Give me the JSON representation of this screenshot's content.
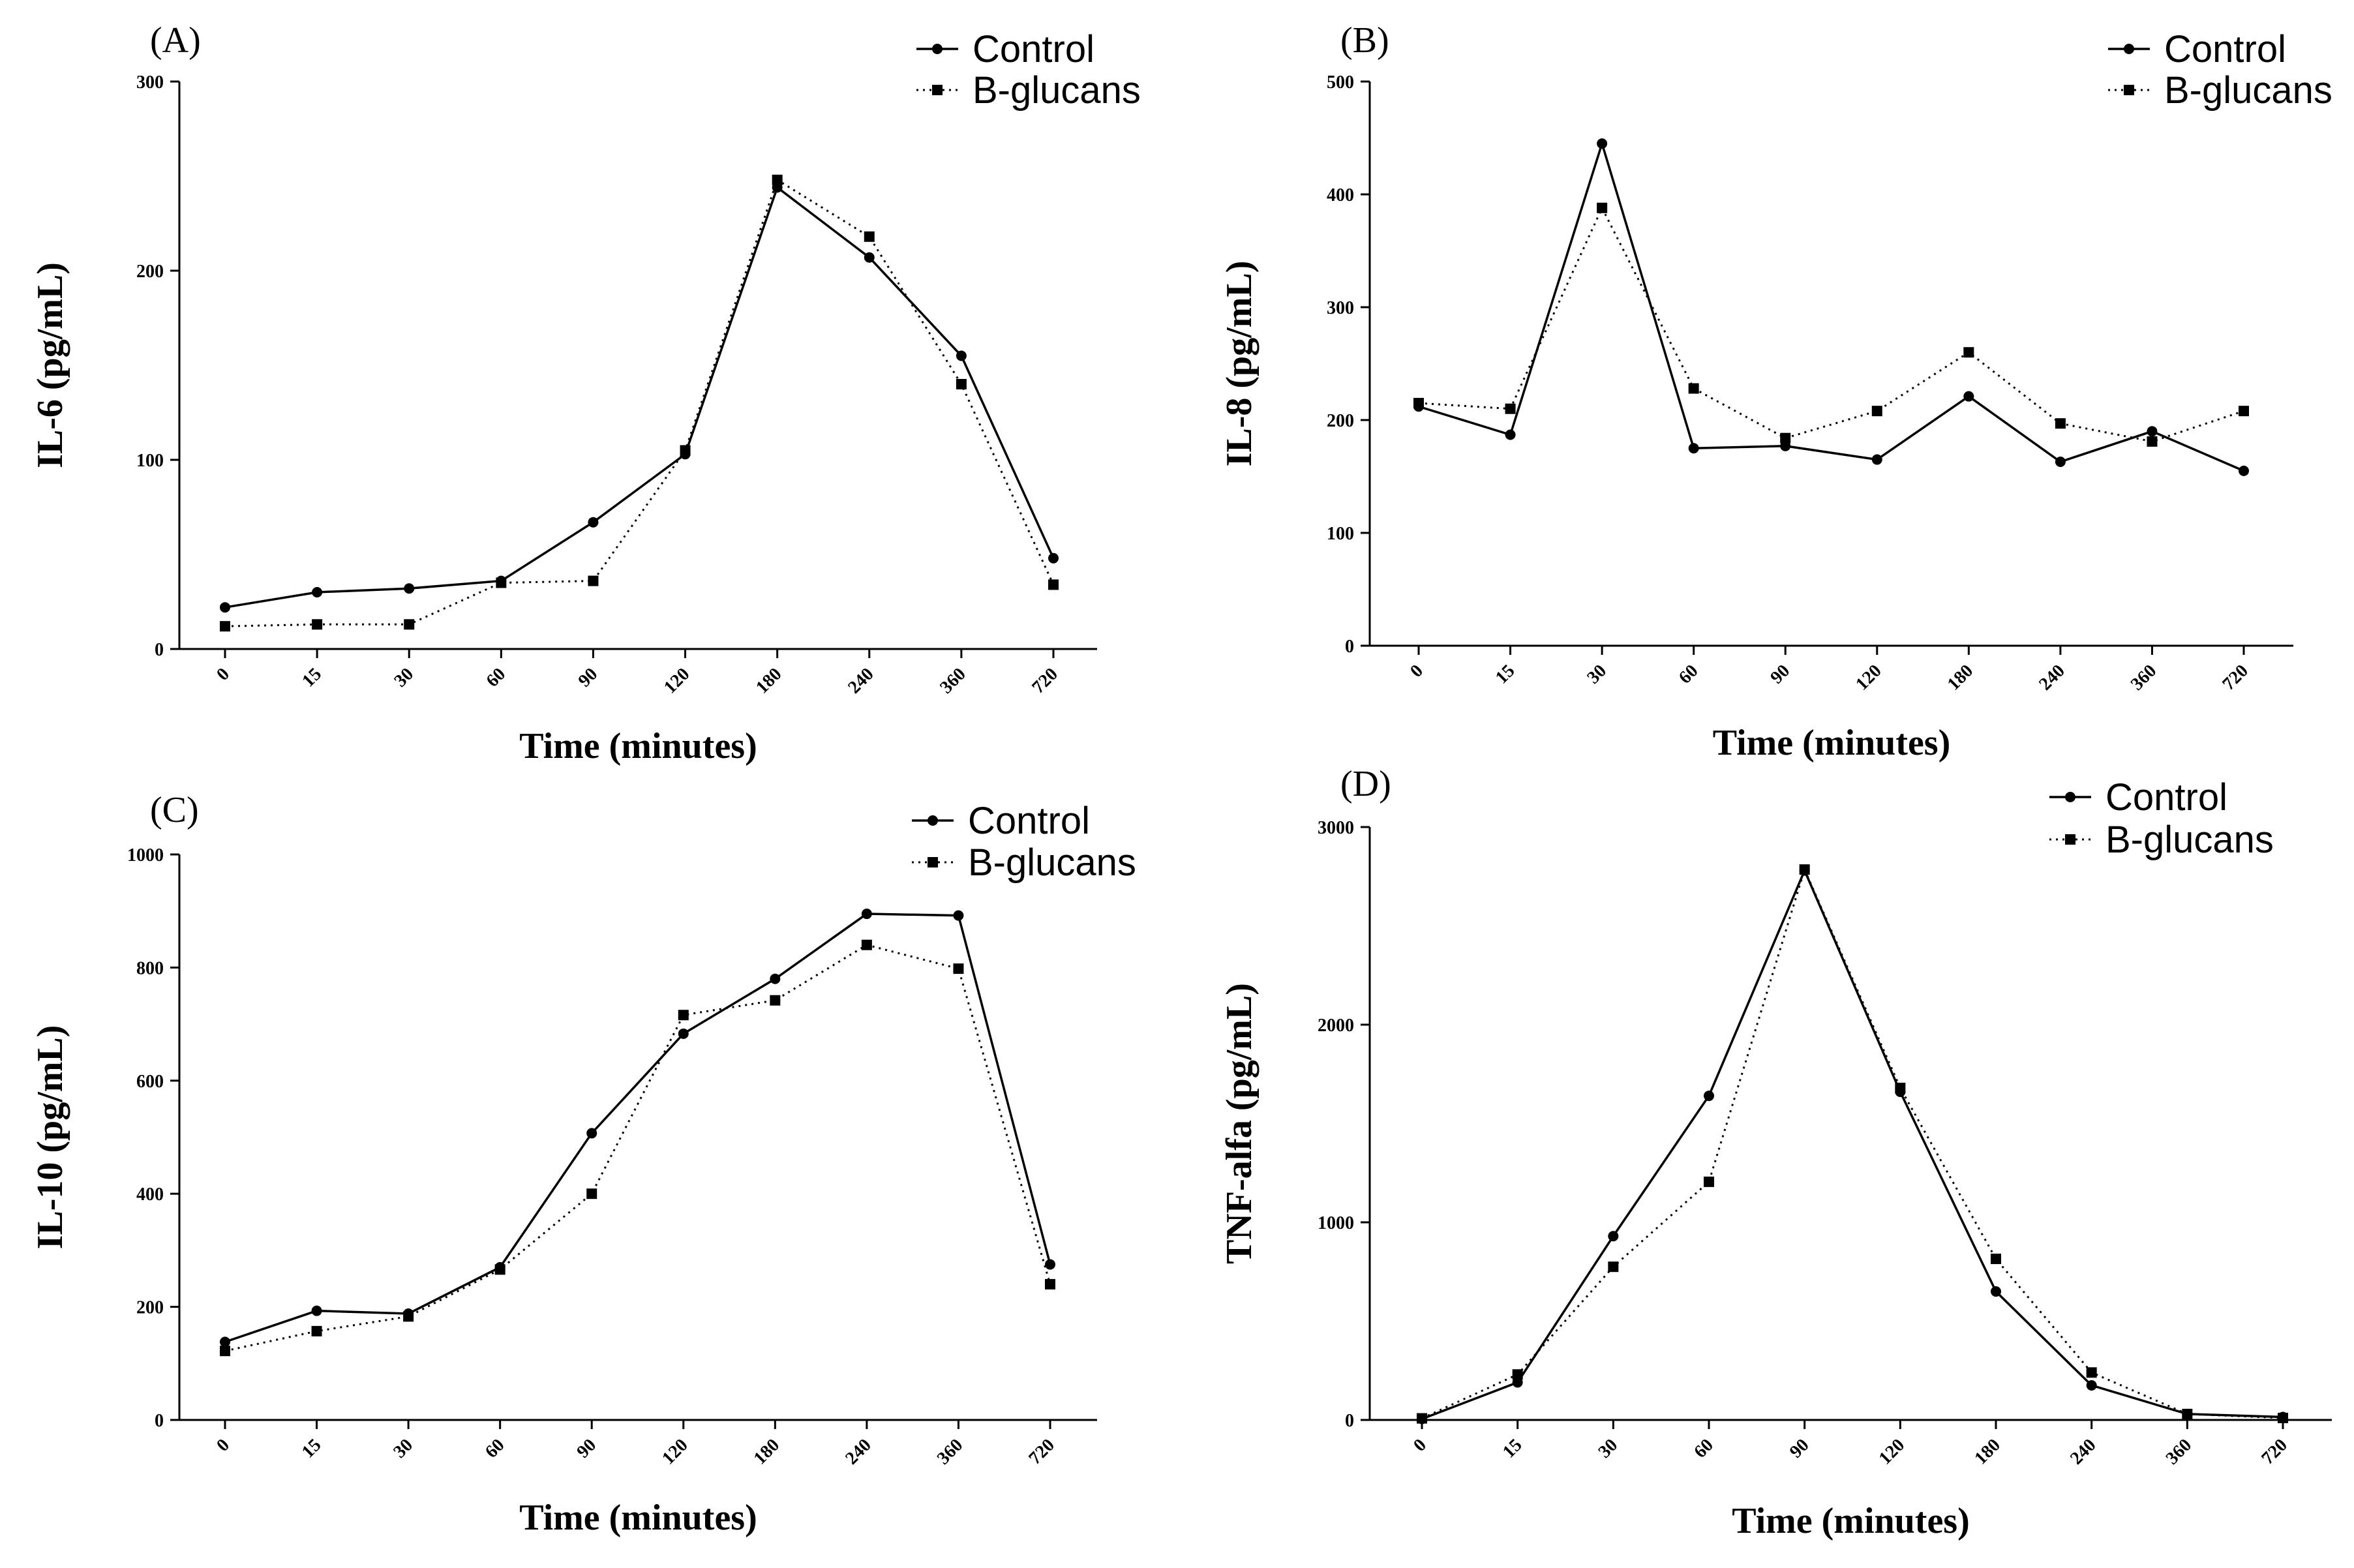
{
  "chart_data": [
    {
      "type": "line",
      "panel_label": "(A)",
      "xlabel": "Time (minutes)",
      "ylabel": "IL-6 (pg/mL)",
      "categories": [
        "0",
        "15",
        "30",
        "60",
        "90",
        "120",
        "180",
        "240",
        "360",
        "720"
      ],
      "ylim": [
        0,
        300
      ],
      "yticks": [
        0,
        100,
        200,
        300
      ],
      "grid": false,
      "legend_position": "top-right",
      "series": [
        {
          "name": "Control",
          "marker": "circle",
          "line": "solid",
          "values": [
            22,
            30,
            32,
            36,
            67,
            103,
            244,
            207,
            155,
            48
          ]
        },
        {
          "name": "B-glucans",
          "marker": "square",
          "line": "dotted",
          "values": [
            12,
            13,
            13,
            35,
            36,
            105,
            248,
            218,
            140,
            34
          ]
        }
      ]
    },
    {
      "type": "line",
      "panel_label": "(B)",
      "xlabel": "Time (minutes)",
      "ylabel": "IL-8 (pg/mL)",
      "categories": [
        "0",
        "15",
        "30",
        "60",
        "90",
        "120",
        "180",
        "240",
        "360",
        "720"
      ],
      "ylim": [
        0,
        500
      ],
      "yticks": [
        0,
        100,
        200,
        300,
        400,
        500
      ],
      "grid": false,
      "legend_position": "top-right",
      "series": [
        {
          "name": "Control",
          "marker": "circle",
          "line": "solid",
          "values": [
            212,
            187,
            445,
            175,
            177,
            165,
            221,
            163,
            190,
            155
          ]
        },
        {
          "name": "B-glucans",
          "marker": "square",
          "line": "dotted",
          "values": [
            215,
            210,
            388,
            228,
            184,
            208,
            260,
            197,
            181,
            208
          ]
        }
      ]
    },
    {
      "type": "line",
      "panel_label": "(C)",
      "xlabel": "Time (minutes)",
      "ylabel": "IL-10 (pg/mL)",
      "categories": [
        "0",
        "15",
        "30",
        "60",
        "90",
        "120",
        "180",
        "240",
        "360",
        "720"
      ],
      "ylim": [
        0,
        1000
      ],
      "yticks": [
        0,
        200,
        400,
        600,
        800,
        1000
      ],
      "grid": false,
      "legend_position": "top-right",
      "series": [
        {
          "name": "Control",
          "marker": "circle",
          "line": "solid",
          "values": [
            138,
            193,
            188,
            270,
            507,
            683,
            780,
            895,
            892,
            275
          ]
        },
        {
          "name": "B-glucans",
          "marker": "square",
          "line": "dotted",
          "values": [
            122,
            157,
            183,
            266,
            400,
            716,
            742,
            840,
            798,
            240
          ]
        }
      ]
    },
    {
      "type": "line",
      "panel_label": "(D)",
      "xlabel": "Time (minutes)",
      "ylabel": "TNF-alfa  (pg/mL)",
      "categories": [
        "0",
        "15",
        "30",
        "60",
        "90",
        "120",
        "180",
        "240",
        "360",
        "720"
      ],
      "ylim": [
        0,
        3000
      ],
      "yticks": [
        0,
        1000,
        2000,
        3000
      ],
      "grid": false,
      "legend_position": "top-right",
      "series": [
        {
          "name": "Control",
          "marker": "circle",
          "line": "solid",
          "values": [
            5,
            190,
            930,
            1640,
            2780,
            1660,
            650,
            175,
            30,
            15
          ]
        },
        {
          "name": "B-glucans",
          "marker": "square",
          "line": "dotted",
          "values": [
            8,
            230,
            775,
            1205,
            2785,
            1680,
            815,
            240,
            30,
            10
          ]
        }
      ]
    }
  ]
}
